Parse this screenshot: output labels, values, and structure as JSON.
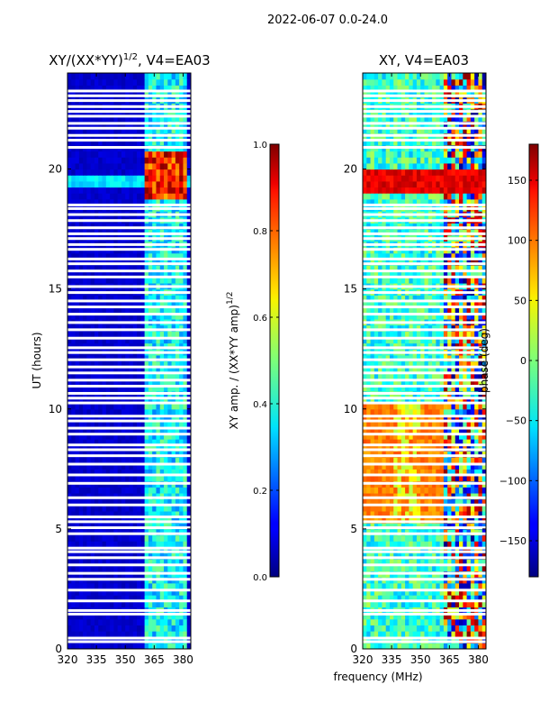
{
  "figure": {
    "suptitle": "2022-06-07 0.0-24.0"
  },
  "chart_data": [
    {
      "type": "heatmap",
      "title": "XY/(XX*YY)^1/2, V4=EA03",
      "title_main": "XY/(XX*YY)",
      "title_sup": "1/2",
      "title_suffix": ", V4=EA03",
      "xlabel": "",
      "ylabel": "UT (hours)",
      "xlim": [
        320,
        384
      ],
      "ylim": [
        0,
        24
      ],
      "xticks": [
        320,
        335,
        350,
        365,
        380
      ],
      "yticks": [
        0,
        5,
        10,
        15,
        20
      ],
      "colorbar": {
        "label_main": "XY amp. / (XX*YY amp)",
        "label_sup": "1/2",
        "range": [
          0.0,
          1.0
        ],
        "ticks": [
          "0.0",
          "0.2",
          "0.4",
          "0.6",
          "0.8",
          "1.0"
        ]
      },
      "features": {
        "background_level": 0.05,
        "bright_band_MHz": [
          361,
          381
        ],
        "high_coherence_hours": [
          18.8,
          20.8
        ],
        "flagged_gaps_hours": [
          0.3,
          0.45,
          1.45,
          1.6,
          2.0,
          2.45,
          2.9,
          3.15,
          3.5,
          3.8,
          4.05,
          4.2,
          4.8,
          5.05,
          5.3,
          5.5,
          6.0,
          6.3,
          6.9,
          7.25,
          7.7,
          8.05,
          8.3,
          8.5,
          8.95,
          9.2,
          9.5,
          9.7,
          10.25,
          10.45,
          10.65,
          10.95,
          11.2,
          11.5,
          11.75,
          12.05,
          12.35,
          12.55,
          12.95,
          13.3,
          13.6,
          13.95,
          14.25,
          14.5,
          14.85,
          15.1,
          15.5,
          15.75,
          16.05,
          16.25,
          16.65,
          16.85,
          17.1,
          17.3,
          17.55,
          17.85,
          18.1,
          18.35,
          18.5,
          20.9,
          21.2,
          21.4,
          21.7,
          21.9,
          22.2,
          22.4,
          22.6,
          22.85,
          23.05,
          23.25
        ]
      }
    },
    {
      "type": "heatmap",
      "title": "XY, V4=EA03",
      "xlabel": "frequency (MHz)",
      "ylabel": "",
      "xlim": [
        320,
        384
      ],
      "ylim": [
        0,
        24
      ],
      "xticks": [
        320,
        335,
        350,
        365,
        380
      ],
      "yticks": [
        0,
        5,
        10,
        15,
        20
      ],
      "colorbar": {
        "label": "phase (deg)",
        "range": [
          -180,
          180
        ],
        "ticks": [
          "−150",
          "−100",
          "−50",
          "0",
          "50",
          "100",
          "150"
        ],
        "tick_values": [
          -150,
          -100,
          -50,
          0,
          50,
          100,
          150
        ]
      },
      "features": {
        "orange_block_hours": [
          5.3,
          10.3
        ],
        "orange_block_MHz": [
          320,
          362
        ],
        "red_band_hours": [
          19.0,
          19.9
        ]
      }
    }
  ]
}
